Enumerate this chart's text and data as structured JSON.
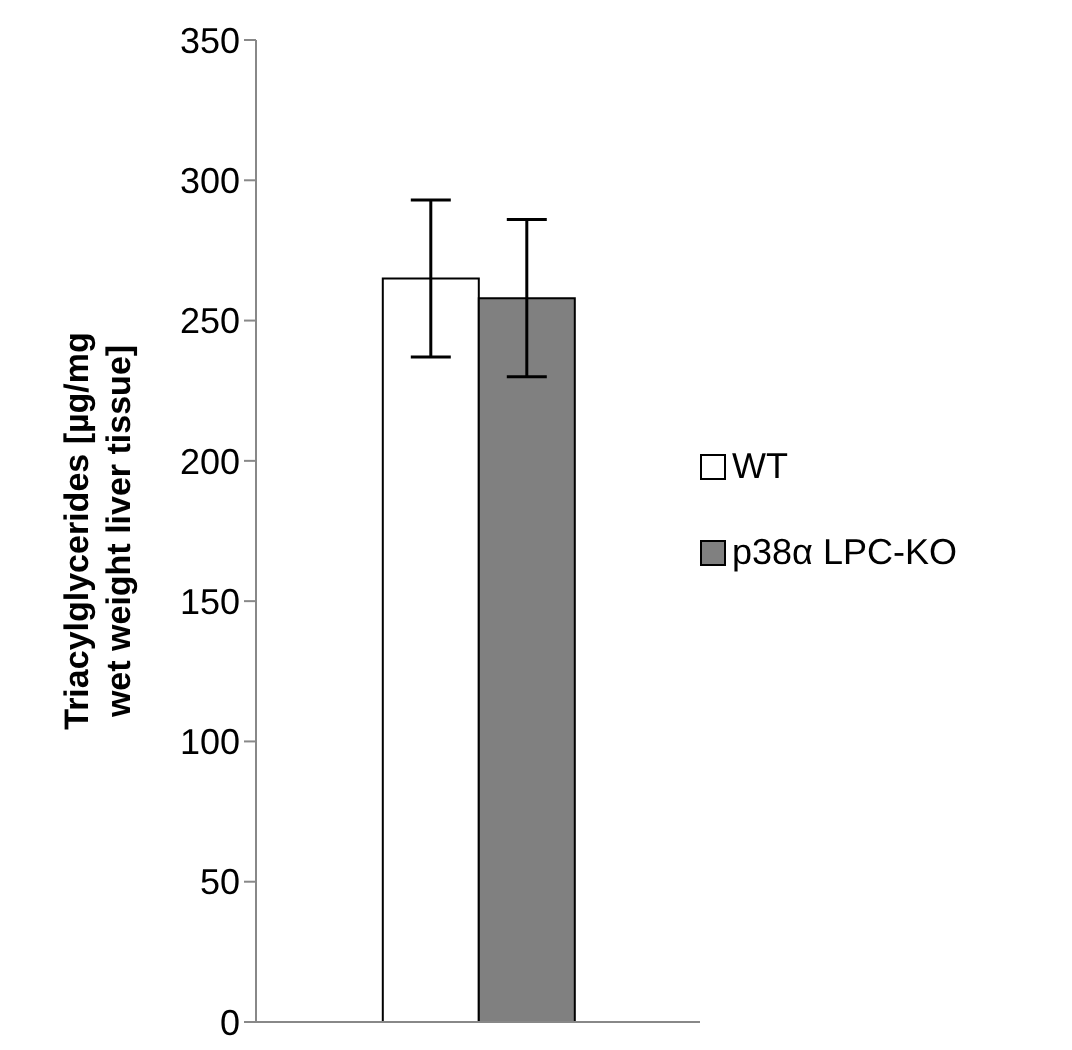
{
  "chart_data": {
    "type": "bar",
    "ylabel": "Triacylglycerides [µg/mg wet weight liver tissue]",
    "categories": [
      null
    ],
    "series": [
      {
        "name": "WT",
        "color": "#ffffff",
        "values": [
          265
        ],
        "errors": [
          28
        ]
      },
      {
        "name": "p38α LPC-KO",
        "color": "#808080",
        "values": [
          258
        ],
        "errors": [
          28
        ]
      }
    ],
    "ylim": [
      0,
      350
    ],
    "yticks": [
      0,
      50,
      100,
      150,
      200,
      250,
      300,
      350
    ],
    "grid": false,
    "legend": "right"
  }
}
